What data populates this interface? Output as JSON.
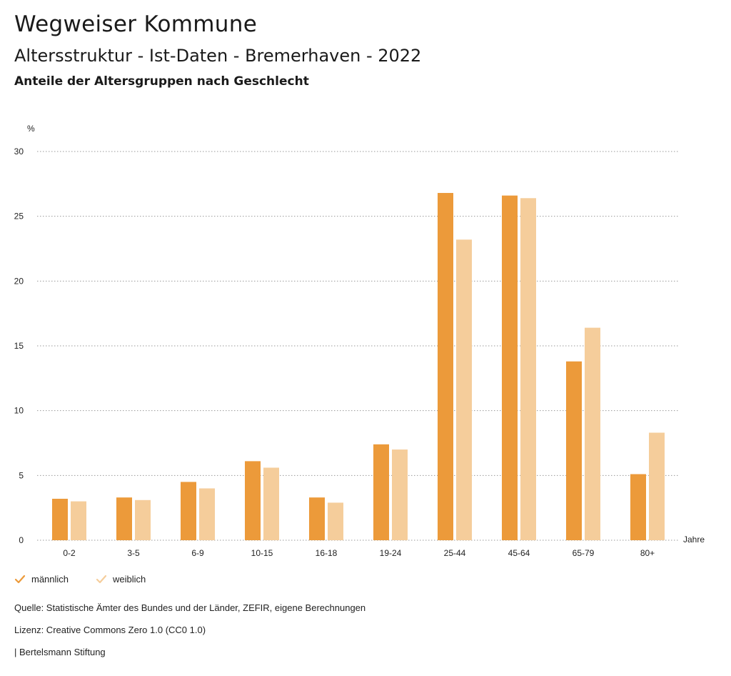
{
  "header": {
    "title": "Wegweiser Kommune",
    "subtitle": "Altersstruktur - Ist-Daten - Bremerhaven - 2022",
    "description": "Anteile der Altersgruppen nach Geschlecht"
  },
  "chart_data": {
    "type": "bar",
    "title": "Altersstruktur - Ist-Daten - Bremerhaven - 2022",
    "subtitle": "Anteile der Altersgruppen nach Geschlecht",
    "ylabel": "%",
    "xlabel": "Jahre",
    "ylim": [
      0,
      30
    ],
    "yticks": [
      0,
      5,
      10,
      15,
      20,
      25,
      30
    ],
    "grid": true,
    "legend_position": "bottom-left",
    "categories": [
      "0-2",
      "3-5",
      "6-9",
      "10-15",
      "16-18",
      "19-24",
      "25-44",
      "45-64",
      "65-79",
      "80+"
    ],
    "series": [
      {
        "name": "männlich",
        "color": "#ec9a3a",
        "values": [
          3.2,
          3.3,
          4.5,
          6.1,
          3.3,
          7.4,
          26.8,
          26.6,
          13.8,
          5.1
        ]
      },
      {
        "name": "weiblich",
        "color": "#f5cd9b",
        "values": [
          3.0,
          3.1,
          4.0,
          5.6,
          2.9,
          7.0,
          23.2,
          26.4,
          16.4,
          8.3
        ]
      }
    ]
  },
  "legend": {
    "items": [
      {
        "label": "männlich",
        "color": "#ec9a3a"
      },
      {
        "label": "weiblich",
        "color": "#f5cd9b"
      }
    ]
  },
  "footer": {
    "source": "Quelle: Statistische Ämter des Bundes und der Länder, ZEFIR, eigene Berechnungen",
    "license": "Lizenz: Creative Commons Zero 1.0 (CC0 1.0)",
    "publisher": "| Bertelsmann Stiftung"
  }
}
